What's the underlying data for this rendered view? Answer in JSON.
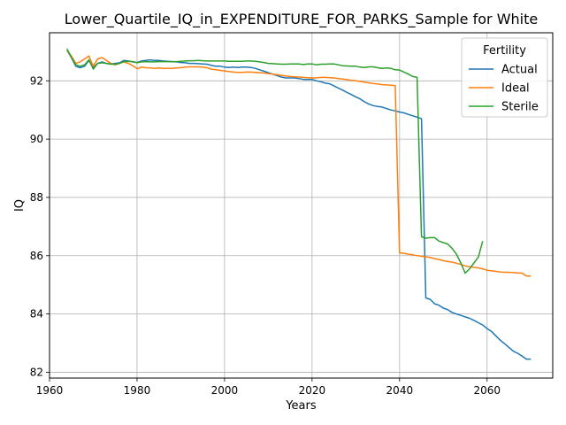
{
  "chart_data": {
    "type": "line",
    "title": "Lower_Quartile_IQ_in_EXPENDITURE_FOR_PARKS_Sample for White",
    "xlabel": "Years",
    "ylabel": "IQ",
    "xlim": [
      1960,
      2075
    ],
    "ylim": [
      81.8,
      93.65
    ],
    "x_ticks": [
      1960,
      1980,
      2000,
      2020,
      2040,
      2060
    ],
    "y_ticks": [
      82,
      84,
      86,
      88,
      90,
      92
    ],
    "grid": true,
    "legend": {
      "title": "Fertility",
      "placement": "top-right"
    },
    "series": [
      {
        "name": "Actual",
        "color": "#1f77b4",
        "x": [
          1964,
          1965,
          1966,
          1967,
          1968,
          1969,
          1970,
          1971,
          1972,
          1973,
          1974,
          1975,
          1976,
          1977,
          1978,
          1979,
          1980,
          1981,
          1982,
          1983,
          1984,
          1985,
          1986,
          1987,
          1988,
          1989,
          1990,
          1991,
          1992,
          1993,
          1994,
          1995,
          1996,
          1997,
          1998,
          1999,
          2000,
          2001,
          2002,
          2003,
          2004,
          2005,
          2006,
          2007,
          2008,
          2009,
          2010,
          2011,
          2012,
          2013,
          2014,
          2015,
          2016,
          2017,
          2018,
          2019,
          2020,
          2021,
          2022,
          2023,
          2024,
          2025,
          2026,
          2027,
          2028,
          2029,
          2030,
          2031,
          2032,
          2033,
          2034,
          2035,
          2036,
          2037,
          2038,
          2039,
          2040,
          2041,
          2042,
          2043,
          2044,
          2045,
          2046,
          2047,
          2048,
          2049,
          2050,
          2051,
          2052,
          2053,
          2054,
          2055,
          2056,
          2057,
          2058,
          2059,
          2060,
          2061,
          2062,
          2063,
          2064,
          2065,
          2066,
          2067,
          2068,
          2069,
          2070
        ],
        "values": [
          93.05,
          92.8,
          92.5,
          92.45,
          92.5,
          92.7,
          92.45,
          92.6,
          92.65,
          92.6,
          92.58,
          92.6,
          92.62,
          92.7,
          92.68,
          92.65,
          92.63,
          92.68,
          92.7,
          92.72,
          92.7,
          92.7,
          92.68,
          92.67,
          92.66,
          92.65,
          92.63,
          92.62,
          92.6,
          92.6,
          92.59,
          92.58,
          92.57,
          92.53,
          92.5,
          92.5,
          92.47,
          92.46,
          92.47,
          92.46,
          92.47,
          92.47,
          92.46,
          92.43,
          92.38,
          92.33,
          92.28,
          92.23,
          92.18,
          92.13,
          92.1,
          92.1,
          92.1,
          92.08,
          92.05,
          92.05,
          92.05,
          92.0,
          91.97,
          91.92,
          91.9,
          91.83,
          91.75,
          91.68,
          91.6,
          91.53,
          91.45,
          91.38,
          91.28,
          91.2,
          91.15,
          91.12,
          91.1,
          91.05,
          91.0,
          90.97,
          90.93,
          90.9,
          90.85,
          90.8,
          90.75,
          90.7,
          84.55,
          84.5,
          84.35,
          84.3,
          84.2,
          84.15,
          84.05,
          84.0,
          83.95,
          83.9,
          83.85,
          83.78,
          83.7,
          83.62,
          83.5,
          83.4,
          83.25,
          83.1,
          82.98,
          82.85,
          82.72,
          82.65,
          82.55,
          82.45,
          82.45
        ]
      },
      {
        "name": "Ideal",
        "color": "#ff7f0e",
        "x": [
          1964,
          1965,
          1966,
          1967,
          1968,
          1969,
          1970,
          1971,
          1972,
          1973,
          1974,
          1975,
          1976,
          1977,
          1978,
          1979,
          1980,
          1981,
          1982,
          1983,
          1984,
          1985,
          1986,
          1987,
          1988,
          1989,
          1990,
          1991,
          1992,
          1993,
          1994,
          1995,
          1996,
          1997,
          1998,
          1999,
          2000,
          2001,
          2002,
          2003,
          2004,
          2005,
          2006,
          2007,
          2008,
          2009,
          2010,
          2011,
          2012,
          2013,
          2014,
          2015,
          2016,
          2017,
          2018,
          2019,
          2020,
          2021,
          2022,
          2023,
          2024,
          2025,
          2026,
          2027,
          2028,
          2029,
          2030,
          2031,
          2032,
          2033,
          2034,
          2035,
          2036,
          2037,
          2038,
          2039,
          2040,
          2041,
          2042,
          2043,
          2044,
          2045,
          2046,
          2047,
          2048,
          2049,
          2050,
          2051,
          2052,
          2053,
          2054,
          2055,
          2056,
          2057,
          2058,
          2059,
          2060,
          2061,
          2062,
          2063,
          2064,
          2065,
          2066,
          2067,
          2068,
          2069,
          2070
        ],
        "values": [
          93.05,
          92.85,
          92.6,
          92.65,
          92.75,
          92.85,
          92.5,
          92.75,
          92.8,
          92.7,
          92.6,
          92.55,
          92.6,
          92.65,
          92.6,
          92.52,
          92.42,
          92.47,
          92.45,
          92.44,
          92.43,
          92.44,
          92.43,
          92.43,
          92.43,
          92.44,
          92.45,
          92.47,
          92.48,
          92.48,
          92.48,
          92.47,
          92.45,
          92.4,
          92.38,
          92.36,
          92.34,
          92.32,
          92.3,
          92.29,
          92.29,
          92.3,
          92.3,
          92.29,
          92.28,
          92.27,
          92.25,
          92.23,
          92.21,
          92.19,
          92.17,
          92.15,
          92.14,
          92.13,
          92.12,
          92.11,
          92.1,
          92.1,
          92.12,
          92.12,
          92.11,
          92.1,
          92.08,
          92.06,
          92.04,
          92.02,
          92.0,
          91.98,
          91.95,
          91.93,
          91.91,
          91.89,
          91.87,
          91.86,
          91.85,
          91.84,
          86.1,
          86.08,
          86.05,
          86.03,
          86.0,
          85.98,
          85.96,
          85.94,
          85.9,
          85.87,
          85.83,
          85.8,
          85.78,
          85.74,
          85.7,
          85.65,
          85.62,
          85.6,
          85.58,
          85.55,
          85.5,
          85.48,
          85.46,
          85.44,
          85.43,
          85.43,
          85.42,
          85.41,
          85.4,
          85.3,
          85.3
        ]
      },
      {
        "name": "Sterile",
        "color": "#2ca02c",
        "x": [
          1964,
          1965,
          1966,
          1967,
          1968,
          1969,
          1970,
          1971,
          1972,
          1973,
          1974,
          1975,
          1976,
          1977,
          1978,
          1979,
          1980,
          1981,
          1982,
          1983,
          1984,
          1985,
          1986,
          1987,
          1988,
          1989,
          1990,
          1991,
          1992,
          1993,
          1994,
          1995,
          1996,
          1997,
          1998,
          1999,
          2000,
          2001,
          2002,
          2003,
          2004,
          2005,
          2006,
          2007,
          2008,
          2009,
          2010,
          2011,
          2012,
          2013,
          2014,
          2015,
          2016,
          2017,
          2018,
          2019,
          2020,
          2021,
          2022,
          2023,
          2024,
          2025,
          2026,
          2027,
          2028,
          2029,
          2030,
          2031,
          2032,
          2033,
          2034,
          2035,
          2036,
          2037,
          2038,
          2039,
          2040,
          2041,
          2042,
          2043,
          2044,
          2045,
          2046,
          2047,
          2048,
          2049,
          2050,
          2051,
          2052,
          2053,
          2054,
          2055,
          2056,
          2057,
          2058,
          2059
        ],
        "values": [
          93.1,
          92.8,
          92.55,
          92.5,
          92.55,
          92.72,
          92.4,
          92.6,
          92.62,
          92.6,
          92.57,
          92.57,
          92.6,
          92.66,
          92.67,
          92.66,
          92.62,
          92.65,
          92.66,
          92.65,
          92.65,
          92.66,
          92.66,
          92.66,
          92.66,
          92.66,
          92.67,
          92.68,
          92.69,
          92.69,
          92.7,
          92.69,
          92.68,
          92.68,
          92.68,
          92.68,
          92.68,
          92.67,
          92.67,
          92.67,
          92.67,
          92.68,
          92.68,
          92.67,
          92.65,
          92.63,
          92.6,
          92.59,
          92.58,
          92.57,
          92.57,
          92.58,
          92.58,
          92.58,
          92.56,
          92.58,
          92.58,
          92.55,
          92.57,
          92.57,
          92.58,
          92.58,
          92.55,
          92.52,
          92.51,
          92.5,
          92.5,
          92.47,
          92.46,
          92.48,
          92.48,
          92.45,
          92.43,
          92.44,
          92.43,
          92.38,
          92.37,
          92.3,
          92.23,
          92.15,
          92.12,
          86.65,
          86.6,
          86.62,
          86.62,
          86.5,
          86.45,
          86.4,
          86.25,
          86.05,
          85.75,
          85.4,
          85.55,
          85.75,
          85.95,
          86.5
        ]
      }
    ]
  }
}
